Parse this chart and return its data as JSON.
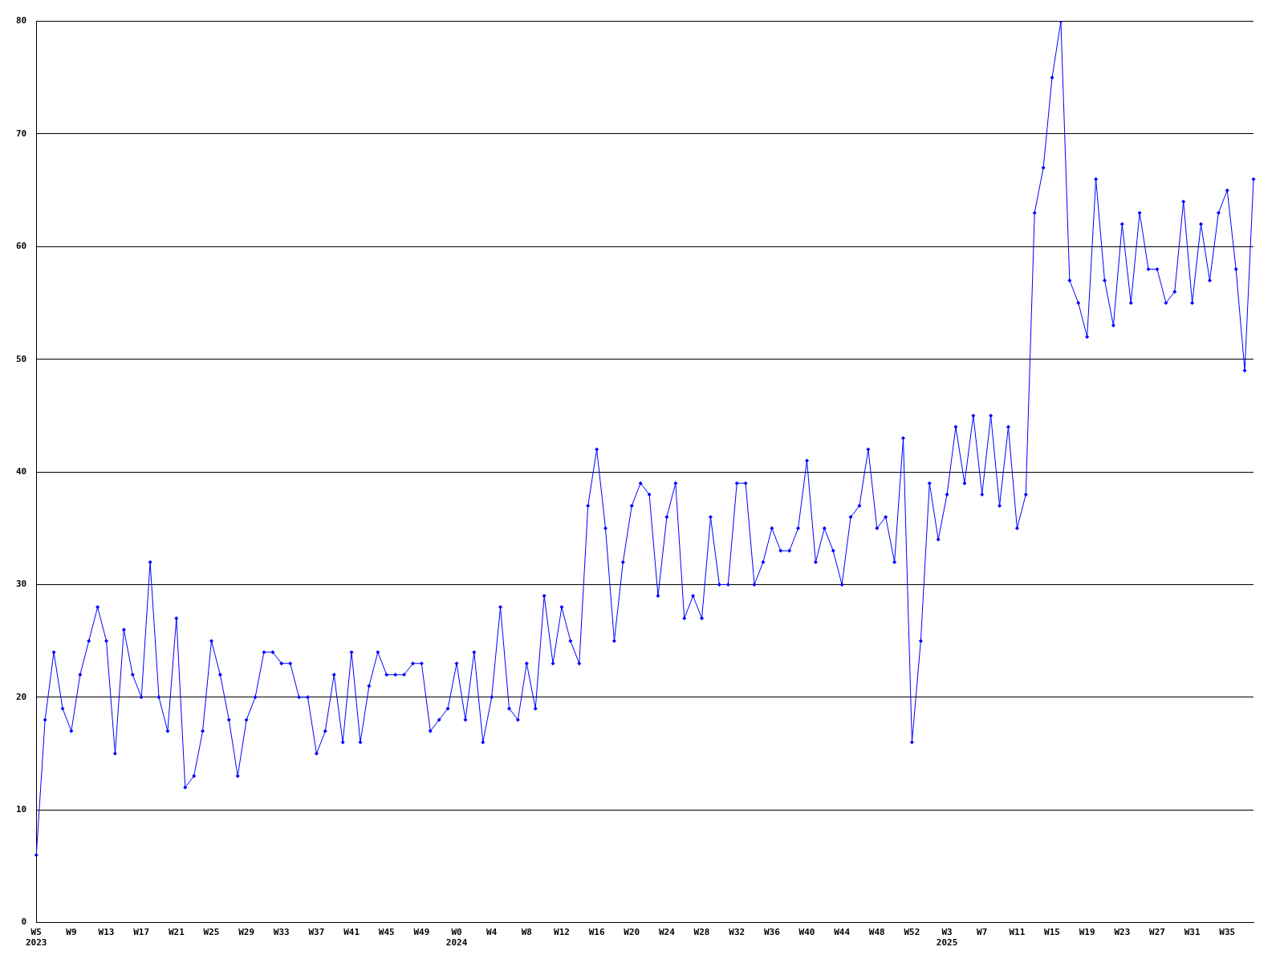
{
  "chart_data": {
    "type": "line",
    "categories": [
      "W5\n2023",
      null,
      null,
      null,
      "W9",
      null,
      null,
      null,
      "W13",
      null,
      null,
      null,
      "W17",
      null,
      null,
      null,
      "W21",
      null,
      null,
      null,
      "W25",
      null,
      null,
      null,
      "W29",
      null,
      null,
      null,
      "W33",
      null,
      null,
      null,
      "W37",
      null,
      null,
      null,
      "W41",
      null,
      null,
      null,
      "W45",
      null,
      null,
      null,
      "W49",
      null,
      null,
      null,
      "W0\n2024",
      null,
      null,
      null,
      "W4",
      null,
      null,
      null,
      "W8",
      null,
      null,
      null,
      "W12",
      null,
      null,
      null,
      "W16",
      null,
      null,
      null,
      "W20",
      null,
      null,
      null,
      "W24",
      null,
      null,
      null,
      "W28",
      null,
      null,
      null,
      "W32",
      null,
      null,
      null,
      "W36",
      null,
      null,
      null,
      "W40",
      null,
      null,
      null,
      "W44",
      null,
      null,
      null,
      "W48",
      null,
      null,
      null,
      "W52",
      null,
      null,
      null,
      "W3\n2025",
      null,
      null,
      null,
      "W7",
      null,
      null,
      null,
      "W11",
      null,
      null,
      null,
      "W15",
      null,
      null,
      null,
      "W19",
      null,
      null,
      null,
      "W23",
      null,
      null,
      null,
      "W27",
      null,
      null,
      null,
      "W31",
      null,
      null,
      null,
      "W35",
      null,
      null,
      null
    ],
    "series": [
      {
        "color": "#0000ff",
        "values": [
          6,
          18,
          24,
          19,
          17,
          22,
          25,
          28,
          25,
          15,
          26,
          22,
          20,
          32,
          20,
          17,
          27,
          12,
          13,
          17,
          25,
          22,
          18,
          13,
          18,
          20,
          24,
          24,
          23,
          23,
          20,
          20,
          15,
          17,
          22,
          16,
          24,
          16,
          21,
          24,
          22,
          22,
          22,
          23,
          23,
          17,
          18,
          19,
          23,
          18,
          24,
          16,
          20,
          28,
          19,
          18,
          23,
          19,
          29,
          23,
          28,
          25,
          23,
          37,
          42,
          35,
          25,
          32,
          37,
          39,
          38,
          29,
          36,
          39,
          27,
          29,
          27,
          36,
          30,
          30,
          39,
          39,
          30,
          32,
          35,
          33,
          33,
          35,
          41,
          32,
          35,
          33,
          30,
          36,
          37,
          42,
          35,
          36,
          32,
          43,
          16,
          25,
          39,
          34,
          38,
          44,
          39,
          45,
          38,
          45,
          37,
          44,
          35,
          38,
          63,
          67,
          75,
          80,
          57,
          55,
          52,
          66,
          57,
          53,
          62,
          55,
          63,
          58,
          58,
          55,
          56,
          64,
          55,
          62,
          57,
          63,
          65,
          58,
          49,
          66
        ]
      }
    ],
    "ylim": [
      0,
      80
    ],
    "yticks": [
      0,
      10,
      20,
      30,
      40,
      50,
      60,
      70,
      80
    ],
    "grid": "y",
    "legend": false,
    "marker": "diamond",
    "line_style": "solid"
  }
}
